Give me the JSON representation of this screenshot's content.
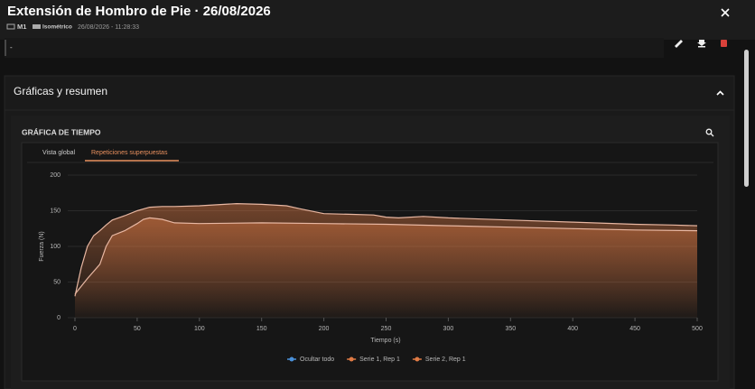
{
  "header": {
    "title": "Extensión de Hombro de Pie · 26/08/2026",
    "device": "M1",
    "mode": "Isométrico",
    "timestamp": "26/08/2026 - 11:28:33"
  },
  "notes": "-",
  "section": {
    "title": "Gráficas y resumen"
  },
  "card": {
    "title": "GRÁFICA DE TIEMPO",
    "tabs": [
      "Vista global",
      "Repeticiones superpuestas"
    ]
  },
  "chart_data": {
    "type": "area",
    "x_label": "Tiempo (s)",
    "y_label": "Fuerza (N)",
    "xlim": [
      0,
      500
    ],
    "xticks": [
      0,
      50,
      100,
      150,
      200,
      250,
      300,
      350,
      400,
      450,
      500
    ],
    "ylim": [
      0,
      200
    ],
    "yticks": [
      0,
      50,
      100,
      150,
      200
    ],
    "grid": true,
    "legend_toggle": {
      "label": "Ocultar todo",
      "color": "#4a90d9"
    },
    "series": [
      {
        "name": "Serie 1, Rep 1",
        "color": "#e07b45",
        "x": [
          0,
          5,
          10,
          15,
          20,
          25,
          30,
          40,
          50,
          60,
          70,
          80,
          100,
          120,
          130,
          150,
          170,
          180,
          200,
          220,
          240,
          250,
          260,
          280,
          300,
          350,
          400,
          450,
          480,
          500
        ],
        "values": [
          30,
          70,
          100,
          115,
          122,
          130,
          137,
          143,
          150,
          155,
          156,
          156,
          157,
          159,
          160,
          159,
          157,
          153,
          146,
          145,
          144,
          141,
          140,
          142,
          140,
          137,
          134,
          131,
          130,
          129
        ]
      },
      {
        "name": "Serie 2, Rep 1",
        "color": "#e07b45",
        "x": [
          0,
          10,
          20,
          25,
          30,
          40,
          50,
          55,
          60,
          70,
          80,
          100,
          150,
          200,
          250,
          300,
          350,
          400,
          450,
          500
        ],
        "values": [
          33,
          55,
          75,
          100,
          115,
          122,
          132,
          138,
          140,
          138,
          133,
          132,
          133,
          132,
          131,
          129,
          127,
          125,
          123,
          122
        ]
      }
    ]
  }
}
